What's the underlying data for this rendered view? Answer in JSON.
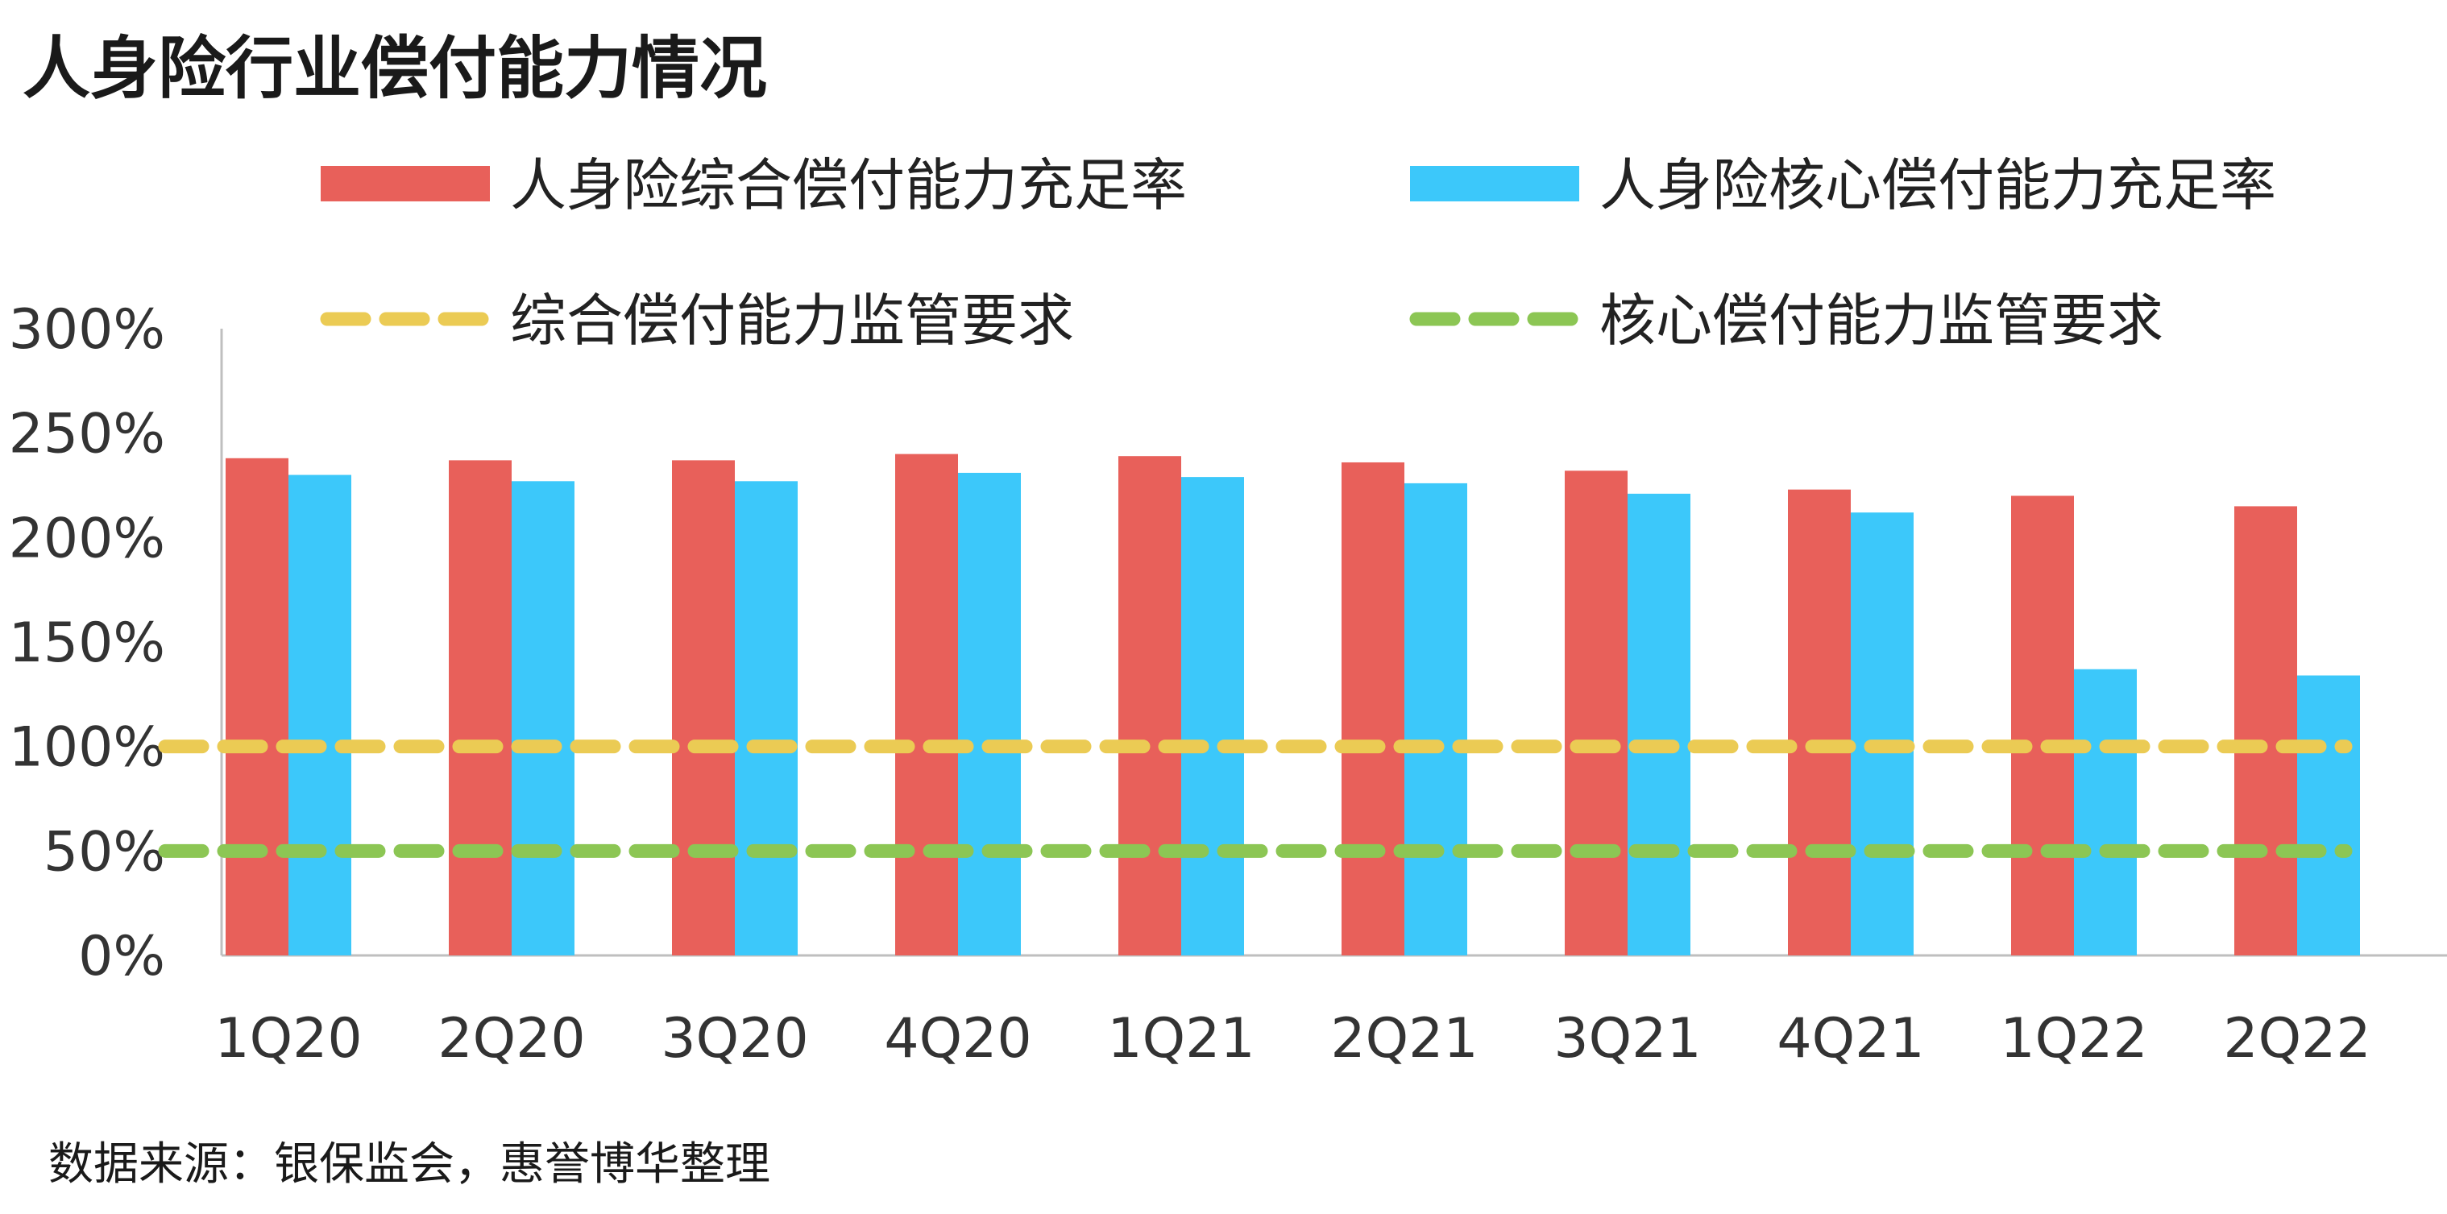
{
  "title": "人身险行业偿付能力情况",
  "source": "数据来源：银保监会，惠誉博华整理",
  "chart_data": {
    "type": "bar",
    "categories": [
      "1Q20",
      "2Q20",
      "3Q20",
      "4Q20",
      "1Q21",
      "2Q21",
      "3Q21",
      "4Q21",
      "1Q22",
      "2Q22"
    ],
    "series": [
      {
        "name": "人身险综合偿付能力充足率",
        "kind": "bar",
        "color": "#E8605A",
        "values": [
          238,
          237,
          237,
          240,
          239,
          236,
          232,
          223,
          220,
          215
        ]
      },
      {
        "name": "人身险核心偿付能力充足率",
        "kind": "bar",
        "color": "#3CC8FA",
        "values": [
          230,
          227,
          227,
          231,
          229,
          226,
          221,
          212,
          137,
          134
        ]
      },
      {
        "name": "综合偿付能力监管要求",
        "kind": "dashed-line",
        "color": "#EBCB54",
        "values": [
          100,
          100,
          100,
          100,
          100,
          100,
          100,
          100,
          100,
          100
        ]
      },
      {
        "name": "核心偿付能力监管要求",
        "kind": "dashed-line",
        "color": "#8CC654",
        "values": [
          50,
          50,
          50,
          50,
          50,
          50,
          50,
          50,
          50,
          50
        ]
      }
    ],
    "y_ticks": [
      "0%",
      "50%",
      "100%",
      "150%",
      "200%",
      "250%",
      "300%"
    ],
    "ylim": [
      0,
      300
    ],
    "grid": false,
    "legend_position": "top"
  }
}
